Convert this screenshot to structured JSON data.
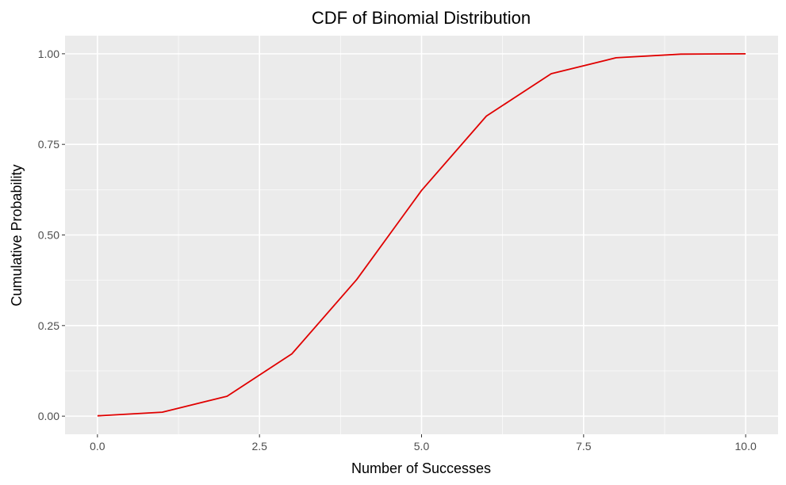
{
  "chart_data": {
    "type": "line",
    "title": "CDF of Binomial Distribution",
    "xlabel": "Number of Successes",
    "ylabel": "Cumulative Probability",
    "xlim": [
      -0.5,
      10.5
    ],
    "ylim": [
      -0.05,
      1.05
    ],
    "x_ticks": [
      0,
      2.5,
      5,
      7.5,
      10
    ],
    "x_tick_labels": [
      "0.0",
      "2.5",
      "5.0",
      "7.5",
      "10.0"
    ],
    "y_ticks": [
      0,
      0.25,
      0.5,
      0.75,
      1
    ],
    "y_tick_labels": [
      "0.00",
      "0.25",
      "0.50",
      "0.75",
      "1.00"
    ],
    "grid": true,
    "background": "#ebebeb",
    "grid_color": "#ffffff",
    "series": [
      {
        "color": "#e00000",
        "x": [
          0,
          1,
          2,
          3,
          4,
          5,
          6,
          7,
          8,
          9,
          10
        ],
        "y": [
          0.001,
          0.011,
          0.055,
          0.172,
          0.377,
          0.623,
          0.828,
          0.945,
          0.989,
          0.999,
          1.0
        ]
      }
    ]
  }
}
